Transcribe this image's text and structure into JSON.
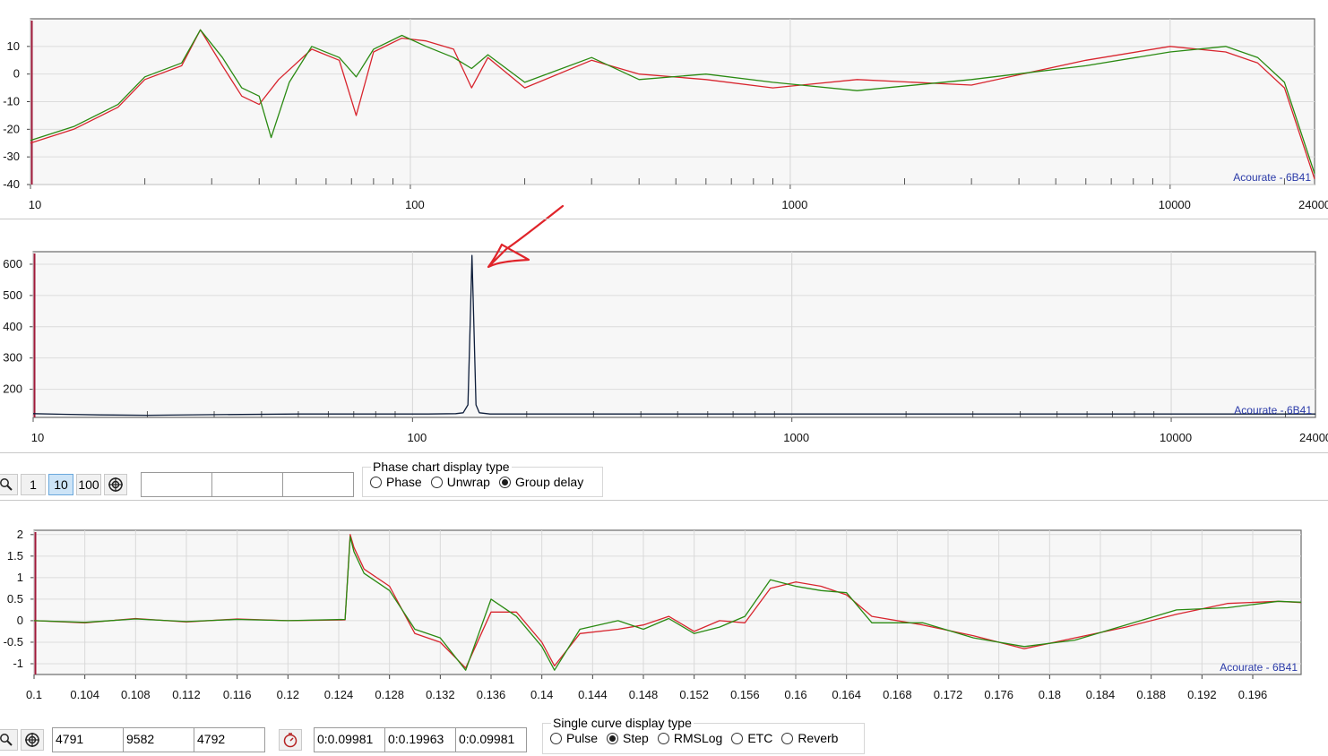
{
  "chart_data": [
    {
      "type": "line",
      "x_scale": "log",
      "xlim": [
        10,
        24000
      ],
      "ylim": [
        -40,
        20
      ],
      "x_ticks": [
        "10",
        "100",
        "1000",
        "10000",
        "24000"
      ],
      "y_ticks": [
        "10",
        "0",
        "-10",
        "-20",
        "-30",
        "-40"
      ],
      "grid": true,
      "watermark": "Acourate - 6B41",
      "series": [
        {
          "color": "#d8252e",
          "x": [
            10,
            13,
            17,
            20,
            25,
            28,
            32,
            36,
            40,
            45,
            55,
            65,
            72,
            80,
            95,
            110,
            130,
            145,
            160,
            200,
            300,
            400,
            600,
            900,
            1500,
            3000,
            6000,
            10000,
            14000,
            17000,
            20000,
            24000
          ],
          "y": [
            -25,
            -20,
            -12,
            -2,
            3,
            16,
            3,
            -8,
            -11,
            -2,
            9,
            5,
            -15,
            8,
            13,
            12,
            9,
            -5,
            6,
            -5,
            5,
            0,
            -2,
            -5,
            -2,
            -4,
            5,
            10,
            8,
            4,
            -5,
            -38
          ]
        },
        {
          "color": "#2a8a12",
          "x": [
            10,
            13,
            17,
            20,
            25,
            28,
            32,
            36,
            40,
            43,
            48,
            55,
            65,
            72,
            80,
            95,
            110,
            130,
            145,
            160,
            200,
            300,
            400,
            600,
            900,
            1500,
            3000,
            6000,
            10000,
            14000,
            17000,
            20000,
            24000
          ],
          "y": [
            -24,
            -19,
            -11,
            -1,
            4,
            16,
            6,
            -5,
            -8,
            -23,
            -3,
            10,
            6,
            -1,
            9,
            14,
            10,
            6,
            2,
            7,
            -3,
            6,
            -2,
            0,
            -3,
            -6,
            -2,
            3,
            8,
            10,
            6,
            -3,
            -36
          ]
        }
      ]
    },
    {
      "type": "line",
      "x_scale": "log",
      "xlim": [
        10,
        24000
      ],
      "ylim": [
        110,
        640
      ],
      "x_ticks": [
        "10",
        "100",
        "1000",
        "10000",
        "24000"
      ],
      "y_ticks": [
        "600",
        "500",
        "400",
        "300",
        "200"
      ],
      "grid": true,
      "watermark": "Acourate - 6B41",
      "series": [
        {
          "color": "#0d1d3a",
          "x": [
            10,
            12,
            15,
            20,
            30,
            50,
            80,
            110,
            130,
            136,
            140,
            142,
            143.5,
            145,
            147,
            150,
            160,
            200,
            500,
            1000,
            5000,
            24000
          ],
          "y": [
            122,
            120,
            118,
            117,
            119,
            121,
            121,
            121,
            122,
            125,
            150,
            420,
            628,
            420,
            150,
            125,
            121,
            121,
            121,
            121,
            121,
            121
          ]
        }
      ]
    },
    {
      "type": "line",
      "xlim": [
        0.1,
        0.19981
      ],
      "ylim": [
        -1.25,
        2.1
      ],
      "x_ticks": [
        "0.1",
        "0.104",
        "0.108",
        "0.112",
        "0.116",
        "0.12",
        "0.124",
        "0.128",
        "0.132",
        "0.136",
        "0.14",
        "0.144",
        "0.148",
        "0.152",
        "0.156",
        "0.16",
        "0.164",
        "0.168",
        "0.172",
        "0.176",
        "0.18",
        "0.184",
        "0.188",
        "0.192",
        "0.196"
      ],
      "y_ticks": [
        "2",
        "1.5",
        "1",
        "0.5",
        "0",
        "-0.5",
        "-1"
      ],
      "grid": true,
      "watermark": "Acourate - 6B41",
      "series": [
        {
          "color": "#d8252e",
          "x": [
            0.1,
            0.104,
            0.108,
            0.112,
            0.116,
            0.12,
            0.1245,
            0.1249,
            0.1252,
            0.126,
            0.128,
            0.13,
            0.132,
            0.134,
            0.136,
            0.138,
            0.14,
            0.141,
            0.143,
            0.146,
            0.148,
            0.15,
            0.152,
            0.154,
            0.156,
            0.158,
            0.16,
            0.162,
            0.164,
            0.166,
            0.17,
            0.174,
            0.178,
            0.182,
            0.186,
            0.19,
            0.194,
            0.198,
            0.19981
          ],
          "y": [
            0,
            -0.05,
            0.05,
            -0.03,
            0.04,
            0,
            0.02,
            2.0,
            1.7,
            1.2,
            0.8,
            -0.3,
            -0.5,
            -1.1,
            0.2,
            0.2,
            -0.5,
            -1.05,
            -0.3,
            -0.2,
            -0.1,
            0.1,
            -0.25,
            0.0,
            -0.05,
            0.75,
            0.9,
            0.8,
            0.6,
            0.1,
            -0.1,
            -0.35,
            -0.65,
            -0.4,
            -0.15,
            0.15,
            0.4,
            0.45,
            0.42
          ]
        },
        {
          "color": "#2a8a12",
          "x": [
            0.1,
            0.104,
            0.108,
            0.112,
            0.116,
            0.12,
            0.1245,
            0.1249,
            0.1252,
            0.126,
            0.128,
            0.13,
            0.132,
            0.134,
            0.136,
            0.138,
            0.14,
            0.141,
            0.143,
            0.146,
            0.148,
            0.15,
            0.152,
            0.154,
            0.156,
            0.158,
            0.16,
            0.162,
            0.164,
            0.166,
            0.17,
            0.174,
            0.178,
            0.182,
            0.186,
            0.19,
            0.194,
            0.198,
            0.19981
          ],
          "y": [
            0,
            -0.04,
            0.04,
            -0.02,
            0.03,
            0,
            0.03,
            1.95,
            1.6,
            1.1,
            0.7,
            -0.2,
            -0.4,
            -1.15,
            0.5,
            0.1,
            -0.6,
            -1.15,
            -0.2,
            0.0,
            -0.2,
            0.05,
            -0.3,
            -0.15,
            0.1,
            0.95,
            0.8,
            0.7,
            0.65,
            -0.05,
            -0.05,
            -0.4,
            -0.6,
            -0.45,
            -0.1,
            0.25,
            0.3,
            0.45,
            0.43
          ]
        }
      ]
    }
  ],
  "phase_toolbar": {
    "buttons": [
      "1",
      "10",
      "100"
    ],
    "selected": "10",
    "fields": [
      "",
      "",
      ""
    ]
  },
  "phase_group": {
    "title": "Phase chart display type",
    "options": [
      "Phase",
      "Unwrap",
      "Group delay"
    ],
    "selected": "Group delay"
  },
  "bottom_toolbar": {
    "fields_a": [
      "4791",
      "9582",
      "4792"
    ],
    "fields_b": [
      "0:0.09981",
      "0:0.19963",
      "0:0.09981"
    ]
  },
  "single_group": {
    "title": "Single curve display type",
    "options": [
      "Pulse",
      "Step",
      "RMSLog",
      "ETC",
      "Reverb"
    ],
    "selected": "Step"
  },
  "annotation": {
    "color": "#e0242a"
  }
}
